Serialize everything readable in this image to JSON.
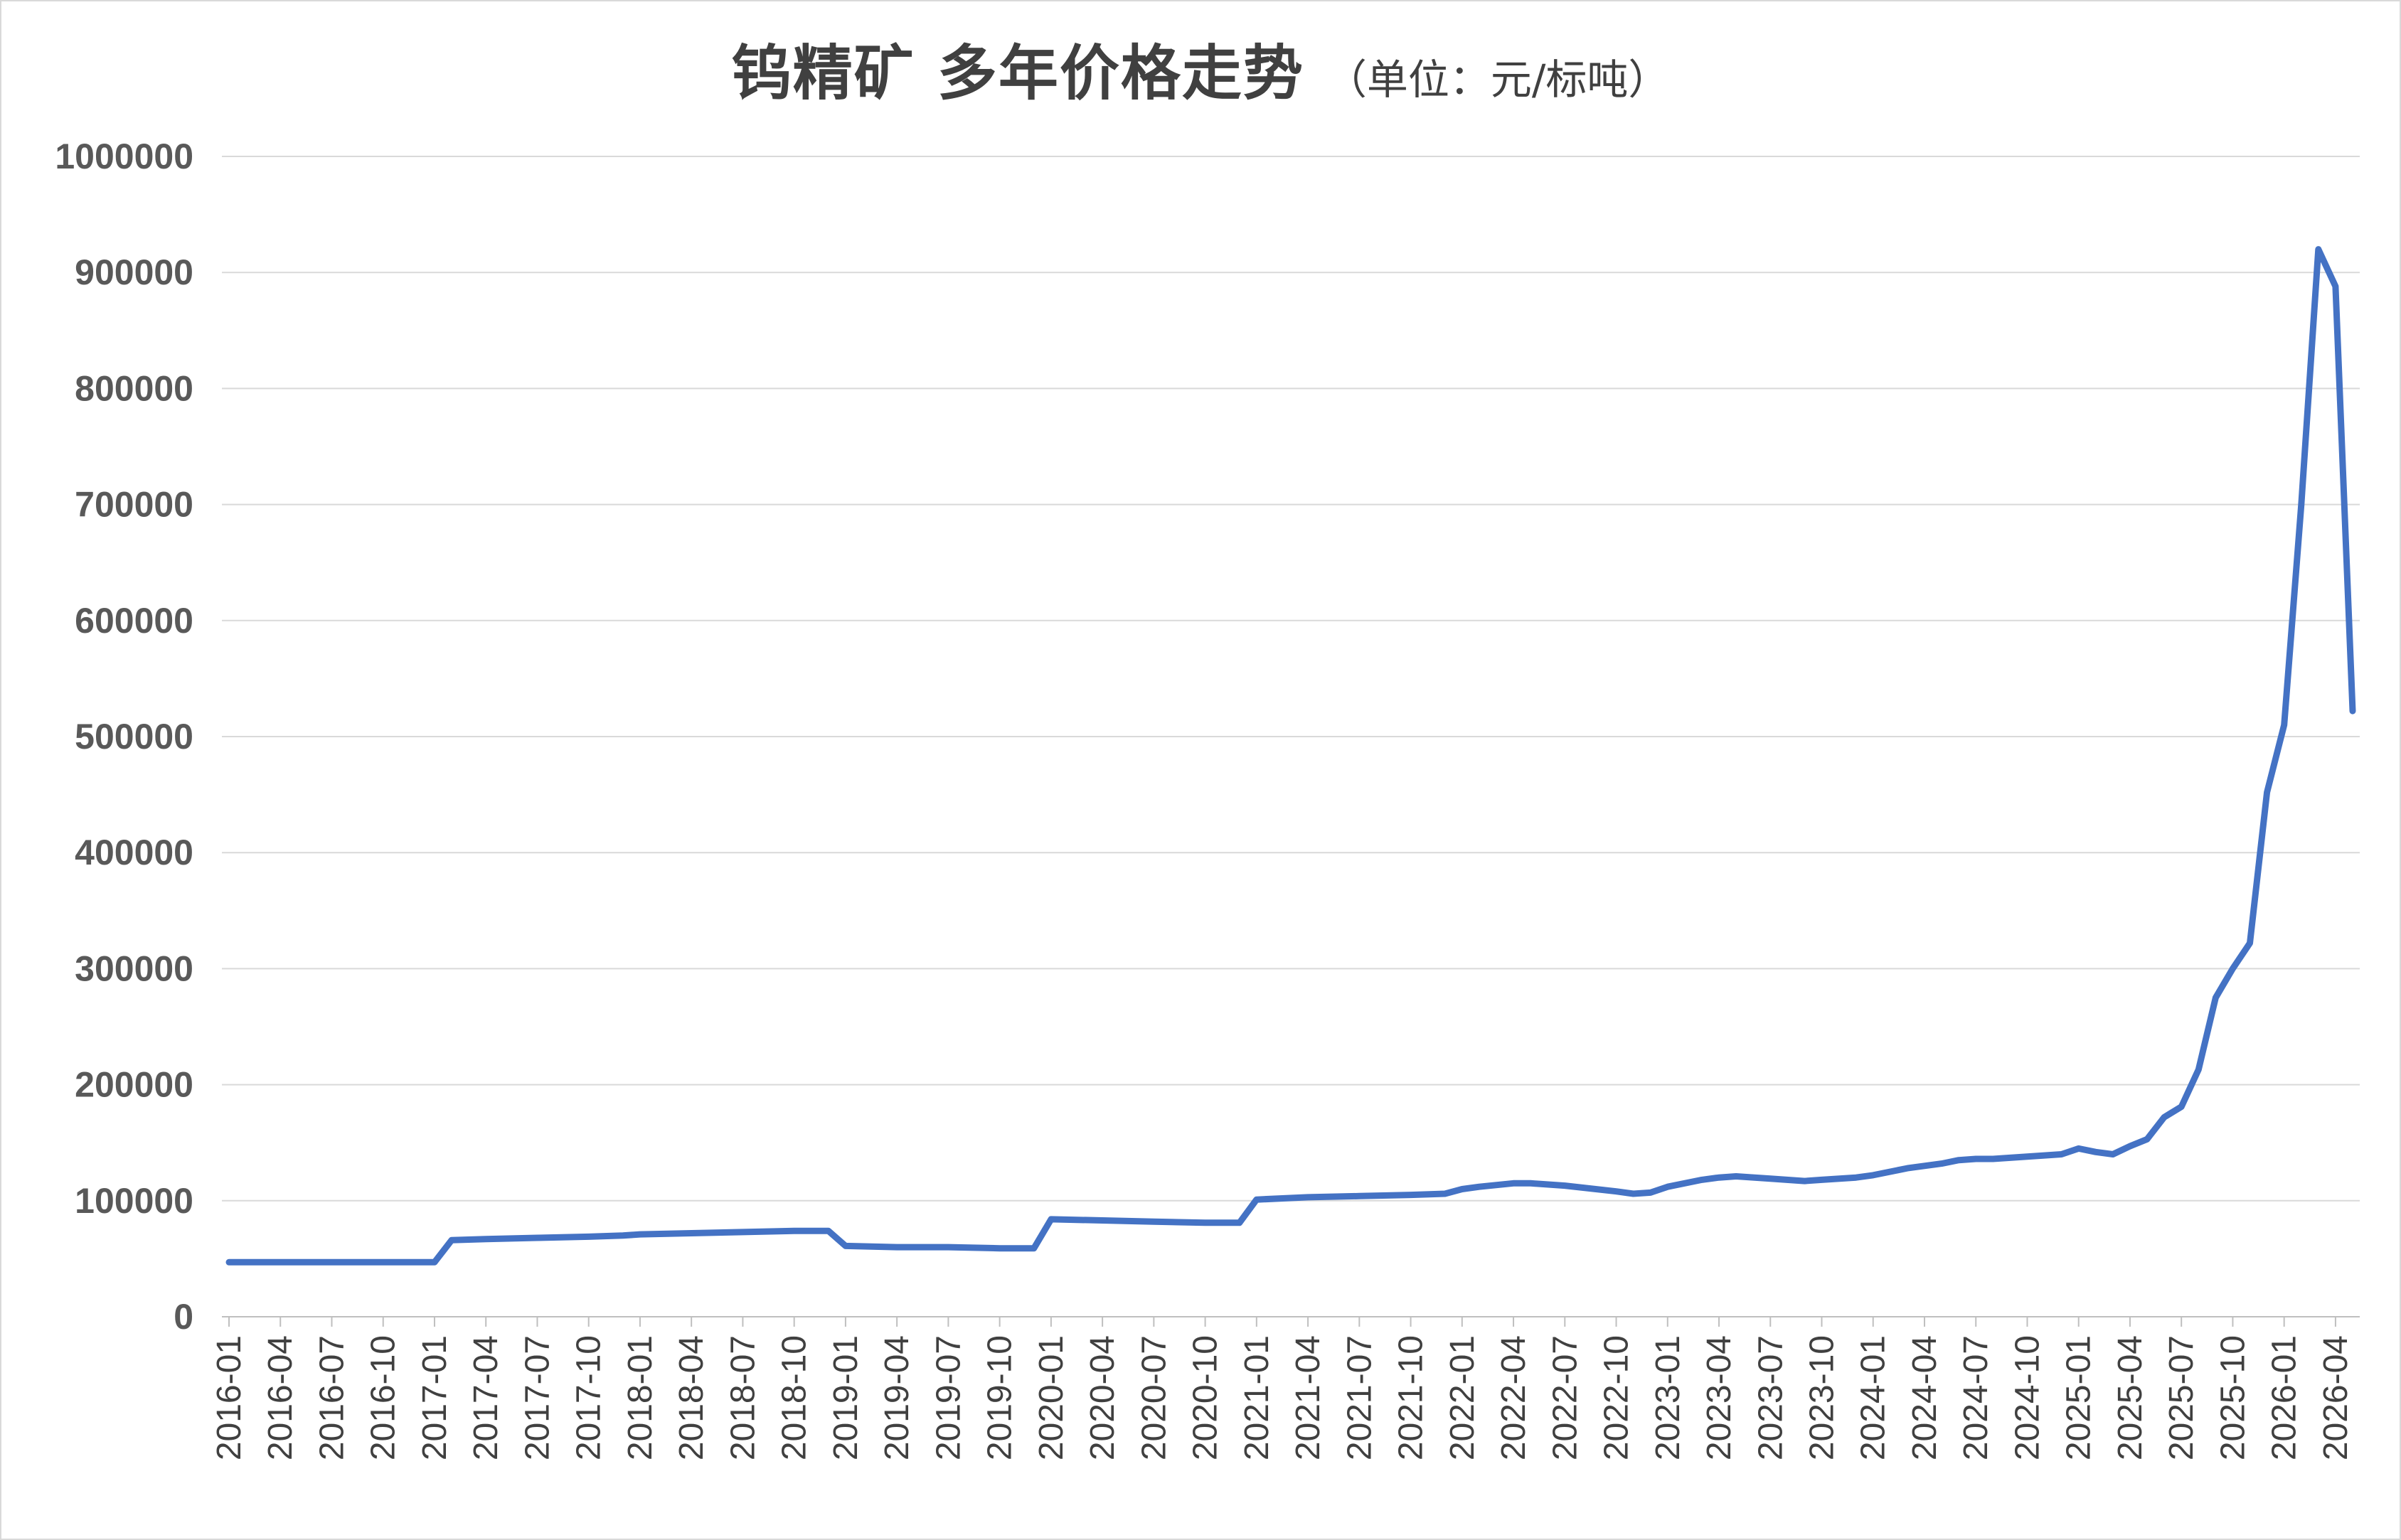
{
  "chart_data": {
    "type": "line",
    "title": "钨精矿  多年价格走势",
    "subtitle": "（单位：元/标吨）",
    "xlabel": "",
    "ylabel": "",
    "ylim": [
      0,
      1000000
    ],
    "yticks": [
      "0",
      "100000",
      "200000",
      "300000",
      "400000",
      "500000",
      "600000",
      "700000",
      "800000",
      "900000",
      "1000000"
    ],
    "grid": true,
    "legend": "none",
    "line_color": "#4472C4",
    "xticks": [
      "2016-01",
      "2016-04",
      "2016-07",
      "2016-10",
      "2017-01",
      "2017-04",
      "2017-07",
      "2017-10",
      "2018-01",
      "2018-04",
      "2018-07",
      "2018-10",
      "2019-01",
      "2019-04",
      "2019-07",
      "2019-10",
      "2020-01",
      "2020-04",
      "2020-07",
      "2020-10",
      "2021-01",
      "2021-04",
      "2021-07",
      "2021-10",
      "2022-01",
      "2022-04",
      "2022-07",
      "2022-10",
      "2023-01",
      "2023-04",
      "2023-07",
      "2023-10",
      "2024-01",
      "2024-04",
      "2024-07",
      "2024-10",
      "2025-01",
      "2025-04",
      "2025-07",
      "2025-10",
      "2026-01",
      "2026-04"
    ],
    "series": [
      {
        "x": [
          "2016-01",
          "2016-04",
          "2016-07",
          "2016-10",
          "2017-01",
          "2017-02",
          "2017-04",
          "2017-07",
          "2017-10",
          "2017-12",
          "2018-01",
          "2018-04",
          "2018-07",
          "2018-10",
          "2018-12",
          "2019-01",
          "2019-04",
          "2019-07",
          "2019-10",
          "2019-12",
          "2020-01",
          "2020-04",
          "2020-07",
          "2020-10",
          "2020-12",
          "2021-01",
          "2021-04",
          "2021-07",
          "2021-10",
          "2021-12",
          "2022-01",
          "2022-02",
          "2022-04",
          "2022-05",
          "2022-07",
          "2022-10",
          "2022-11",
          "2022-12",
          "2023-01",
          "2023-03",
          "2023-04",
          "2023-05",
          "2023-07",
          "2023-09",
          "2023-10",
          "2023-12",
          "2024-01",
          "2024-03",
          "2024-05",
          "2024-06",
          "2024-07",
          "2024-08",
          "2024-10",
          "2024-12",
          "2025-01",
          "2025-02",
          "2025-03",
          "2025-04",
          "2025-05",
          "2025-06",
          "2025-07",
          "2025-08",
          "2025-09",
          "2025-10",
          "2025-11",
          "2025-12",
          "2026-01",
          "2026-02",
          "2026-03",
          "2026-04",
          "2026-05"
        ],
        "values": [
          47000,
          47000,
          47000,
          47000,
          47000,
          66000,
          67000,
          68000,
          69000,
          70000,
          71000,
          72000,
          73000,
          74000,
          74000,
          61000,
          60000,
          60000,
          59000,
          59000,
          84000,
          83000,
          82000,
          81000,
          81000,
          101000,
          103000,
          104000,
          105000,
          106000,
          110000,
          112000,
          115000,
          115000,
          113000,
          108000,
          106000,
          107000,
          112000,
          118000,
          120000,
          121000,
          119000,
          117000,
          118000,
          120000,
          122000,
          128000,
          132000,
          135000,
          136000,
          136000,
          138000,
          140000,
          145000,
          142000,
          140000,
          147000,
          153000,
          172000,
          181000,
          213000,
          275000,
          300000,
          322000,
          452000,
          510000,
          700000,
          920000,
          888000,
          522000
        ]
      }
    ]
  }
}
